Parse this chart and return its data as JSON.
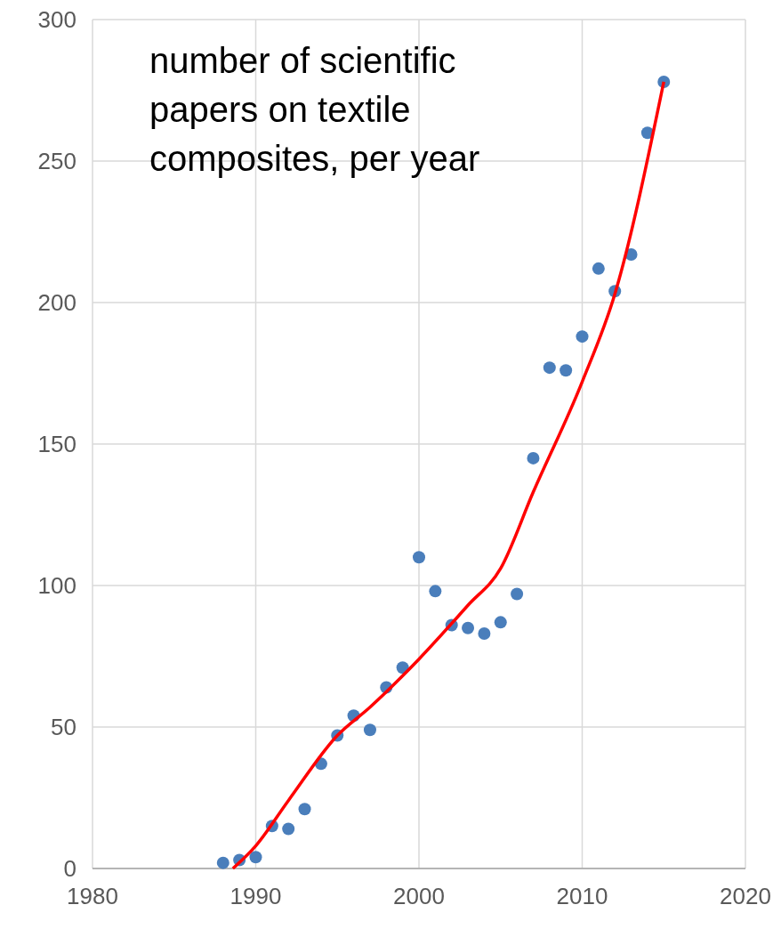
{
  "chart_data": {
    "type": "scatter",
    "annotations": [
      "number of scientific papers on textile composites, per year"
    ],
    "xlim": [
      1980,
      2020
    ],
    "xticks": [
      1980,
      1990,
      2000,
      2010,
      2020
    ],
    "ylim": [
      0,
      300
    ],
    "yticks": [
      0,
      50,
      100,
      150,
      200,
      250,
      300
    ],
    "grid": true,
    "marker": "circle",
    "series": [
      {
        "color": "#4a7ebb",
        "x": [
          1988,
          1989,
          1990,
          1991,
          1992,
          1993,
          1994,
          1995,
          1996,
          1997,
          1998,
          1999,
          2000,
          2001,
          2002,
          2003,
          2004,
          2005,
          2006,
          2007,
          2008,
          2009,
          2010,
          2011,
          2012,
          2013,
          2014,
          2015
        ],
        "values": [
          2,
          3,
          4,
          15,
          14,
          21,
          37,
          47,
          54,
          49,
          64,
          71,
          110,
          98,
          86,
          85,
          83,
          87,
          97,
          145,
          177,
          176,
          188,
          212,
          204,
          217,
          260,
          278
        ]
      },
      {
        "type": "line",
        "color": "#ff0000",
        "marker": "none",
        "x": [
          1988.6,
          1990,
          1992,
          1995,
          1997,
          2000,
          2003,
          2005,
          2007,
          2010,
          2012,
          2015
        ],
        "values": [
          0,
          8,
          24,
          47,
          57,
          74,
          93,
          106,
          133,
          172,
          203,
          278
        ]
      }
    ]
  }
}
